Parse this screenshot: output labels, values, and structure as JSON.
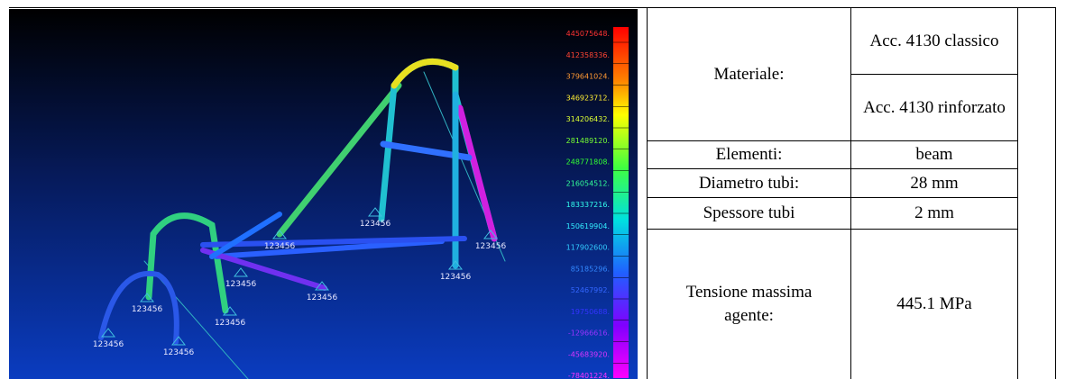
{
  "fem_view": {
    "legend_labels": [
      "445075648.",
      "412358336.",
      "379641024.",
      "346923712.",
      "314206432.",
      "281489120.",
      "248771808.",
      "216054512.",
      "183337216.",
      "150619904.",
      "117902600.",
      "85185296.",
      "52467992.",
      "19750688.",
      "-12966616.",
      "-45683920.",
      "-78401224."
    ],
    "node_labels": [
      "123456",
      "123456",
      "123456",
      "123456",
      "123456",
      "123456",
      "123456",
      "123456",
      "123456",
      "123456"
    ]
  },
  "table": {
    "material": {
      "label": "Materiale:",
      "values": [
        "Acc. 4130 classico",
        "Acc. 4130 rinforzato"
      ]
    },
    "rows": [
      [
        "Elementi:",
        "beam"
      ],
      [
        "Diametro tubi:",
        "28 mm"
      ],
      [
        "Spessore tubi",
        "2 mm"
      ],
      [
        "Tensione massima agente:",
        "445.1 MPa"
      ]
    ]
  }
}
